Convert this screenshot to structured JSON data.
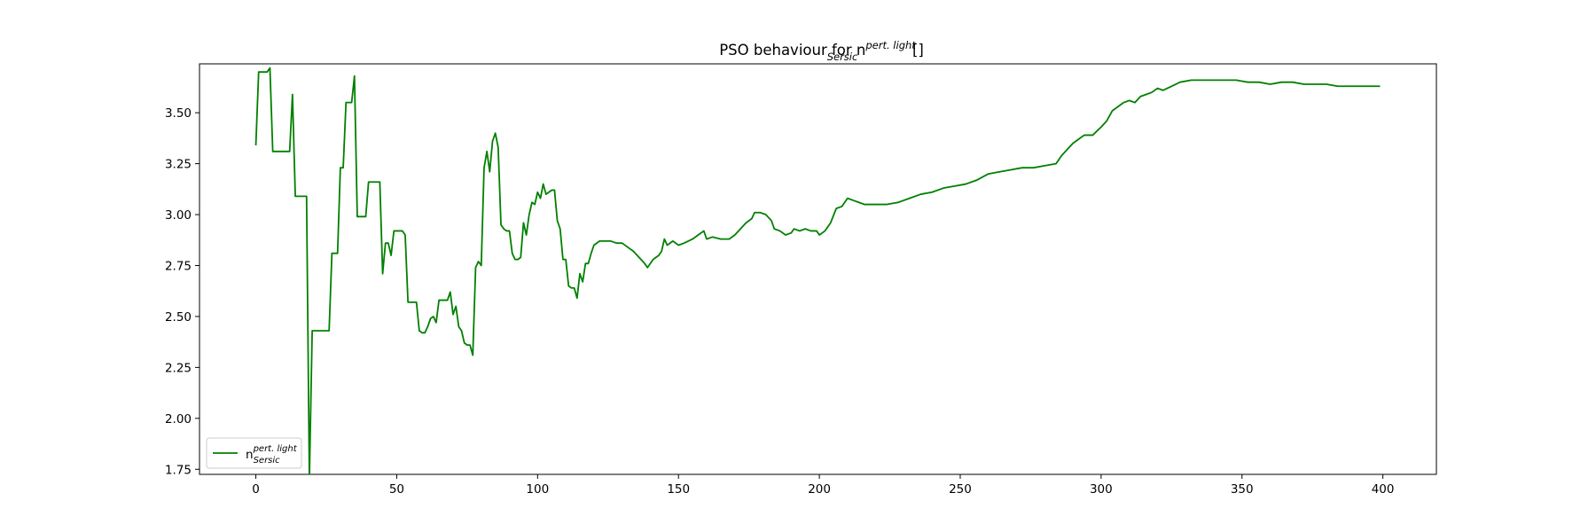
{
  "chart_data": {
    "type": "line",
    "title": {
      "base": "PSO behaviour for n",
      "sup": "pert. light",
      "sub": "Sersic",
      "tail": " []"
    },
    "xlabel": "",
    "ylabel": "",
    "xlim": [
      -20,
      419
    ],
    "ylim": [
      1.725,
      3.74
    ],
    "xticks": [
      0,
      50,
      100,
      150,
      200,
      250,
      300,
      350,
      400
    ],
    "yticks": [
      1.75,
      2.0,
      2.25,
      2.5,
      2.75,
      3.0,
      3.25,
      3.5
    ],
    "ytick_labels": [
      "1.75",
      "2.00",
      "2.25",
      "2.50",
      "2.75",
      "3.00",
      "3.25",
      "3.50"
    ],
    "grid": false,
    "legend_position": "lower-left",
    "series": [
      {
        "name": {
          "base": "n",
          "sup": "pert. light",
          "sub": "Sersic"
        },
        "color": "#008000",
        "points": [
          [
            0,
            3.34
          ],
          [
            1,
            3.7
          ],
          [
            2,
            3.7
          ],
          [
            3,
            3.7
          ],
          [
            4,
            3.7
          ],
          [
            5,
            3.72
          ],
          [
            6,
            3.31
          ],
          [
            7,
            3.31
          ],
          [
            8,
            3.31
          ],
          [
            9,
            3.31
          ],
          [
            10,
            3.31
          ],
          [
            11,
            3.31
          ],
          [
            12,
            3.31
          ],
          [
            13,
            3.59
          ],
          [
            14,
            3.09
          ],
          [
            15,
            3.09
          ],
          [
            16,
            3.09
          ],
          [
            17,
            3.09
          ],
          [
            18,
            3.09
          ],
          [
            19,
            1.7
          ],
          [
            20,
            2.43
          ],
          [
            21,
            2.43
          ],
          [
            22,
            2.43
          ],
          [
            23,
            2.43
          ],
          [
            24,
            2.43
          ],
          [
            25,
            2.43
          ],
          [
            26,
            2.43
          ],
          [
            27,
            2.81
          ],
          [
            28,
            2.81
          ],
          [
            29,
            2.81
          ],
          [
            30,
            3.23
          ],
          [
            31,
            3.23
          ],
          [
            32,
            3.55
          ],
          [
            33,
            3.55
          ],
          [
            34,
            3.55
          ],
          [
            35,
            3.68
          ],
          [
            36,
            2.99
          ],
          [
            37,
            2.99
          ],
          [
            38,
            2.99
          ],
          [
            39,
            2.99
          ],
          [
            40,
            3.16
          ],
          [
            41,
            3.16
          ],
          [
            42,
            3.16
          ],
          [
            43,
            3.16
          ],
          [
            44,
            3.16
          ],
          [
            45,
            2.71
          ],
          [
            46,
            2.86
          ],
          [
            47,
            2.86
          ],
          [
            48,
            2.8
          ],
          [
            49,
            2.92
          ],
          [
            50,
            2.92
          ],
          [
            51,
            2.92
          ],
          [
            52,
            2.92
          ],
          [
            53,
            2.9
          ],
          [
            54,
            2.57
          ],
          [
            55,
            2.57
          ],
          [
            56,
            2.57
          ],
          [
            57,
            2.57
          ],
          [
            58,
            2.43
          ],
          [
            59,
            2.42
          ],
          [
            60,
            2.42
          ],
          [
            61,
            2.45
          ],
          [
            62,
            2.49
          ],
          [
            63,
            2.5
          ],
          [
            64,
            2.47
          ],
          [
            65,
            2.58
          ],
          [
            66,
            2.58
          ],
          [
            67,
            2.58
          ],
          [
            68,
            2.58
          ],
          [
            69,
            2.62
          ],
          [
            70,
            2.51
          ],
          [
            71,
            2.55
          ],
          [
            72,
            2.45
          ],
          [
            73,
            2.43
          ],
          [
            74,
            2.37
          ],
          [
            75,
            2.36
          ],
          [
            76,
            2.36
          ],
          [
            77,
            2.31
          ],
          [
            78,
            2.74
          ],
          [
            79,
            2.77
          ],
          [
            80,
            2.75
          ],
          [
            81,
            3.23
          ],
          [
            82,
            3.31
          ],
          [
            83,
            3.21
          ],
          [
            84,
            3.36
          ],
          [
            85,
            3.4
          ],
          [
            86,
            3.33
          ],
          [
            87,
            2.95
          ],
          [
            88,
            2.93
          ],
          [
            89,
            2.92
          ],
          [
            90,
            2.92
          ],
          [
            91,
            2.81
          ],
          [
            92,
            2.78
          ],
          [
            93,
            2.78
          ],
          [
            94,
            2.79
          ],
          [
            95,
            2.96
          ],
          [
            96,
            2.9
          ],
          [
            97,
            3.0
          ],
          [
            98,
            3.06
          ],
          [
            99,
            3.05
          ],
          [
            100,
            3.11
          ],
          [
            101,
            3.08
          ],
          [
            102,
            3.15
          ],
          [
            103,
            3.1
          ],
          [
            104,
            3.11
          ],
          [
            105,
            3.12
          ],
          [
            106,
            3.12
          ],
          [
            107,
            2.97
          ],
          [
            108,
            2.93
          ],
          [
            109,
            2.78
          ],
          [
            110,
            2.78
          ],
          [
            111,
            2.65
          ],
          [
            112,
            2.64
          ],
          [
            113,
            2.64
          ],
          [
            114,
            2.59
          ],
          [
            115,
            2.71
          ],
          [
            116,
            2.67
          ],
          [
            117,
            2.76
          ],
          [
            118,
            2.76
          ],
          [
            119,
            2.81
          ],
          [
            120,
            2.85
          ],
          [
            122,
            2.87
          ],
          [
            124,
            2.87
          ],
          [
            126,
            2.87
          ],
          [
            128,
            2.86
          ],
          [
            130,
            2.86
          ],
          [
            132,
            2.84
          ],
          [
            134,
            2.82
          ],
          [
            136,
            2.79
          ],
          [
            138,
            2.76
          ],
          [
            139,
            2.74
          ],
          [
            141,
            2.78
          ],
          [
            143,
            2.8
          ],
          [
            144,
            2.82
          ],
          [
            145,
            2.88
          ],
          [
            146,
            2.85
          ],
          [
            148,
            2.87
          ],
          [
            150,
            2.85
          ],
          [
            152,
            2.86
          ],
          [
            155,
            2.88
          ],
          [
            157,
            2.9
          ],
          [
            159,
            2.92
          ],
          [
            160,
            2.88
          ],
          [
            162,
            2.89
          ],
          [
            165,
            2.88
          ],
          [
            168,
            2.88
          ],
          [
            170,
            2.9
          ],
          [
            172,
            2.93
          ],
          [
            174,
            2.96
          ],
          [
            176,
            2.98
          ],
          [
            177,
            3.01
          ],
          [
            179,
            3.01
          ],
          [
            181,
            3.0
          ],
          [
            183,
            2.97
          ],
          [
            184,
            2.93
          ],
          [
            186,
            2.92
          ],
          [
            188,
            2.9
          ],
          [
            190,
            2.91
          ],
          [
            191,
            2.93
          ],
          [
            193,
            2.92
          ],
          [
            195,
            2.93
          ],
          [
            197,
            2.92
          ],
          [
            199,
            2.92
          ],
          [
            200,
            2.9
          ],
          [
            202,
            2.92
          ],
          [
            204,
            2.96
          ],
          [
            206,
            3.03
          ],
          [
            208,
            3.04
          ],
          [
            210,
            3.08
          ],
          [
            212,
            3.07
          ],
          [
            214,
            3.06
          ],
          [
            216,
            3.05
          ],
          [
            220,
            3.05
          ],
          [
            224,
            3.05
          ],
          [
            228,
            3.06
          ],
          [
            232,
            3.08
          ],
          [
            236,
            3.1
          ],
          [
            240,
            3.11
          ],
          [
            244,
            3.13
          ],
          [
            248,
            3.14
          ],
          [
            252,
            3.15
          ],
          [
            256,
            3.17
          ],
          [
            260,
            3.2
          ],
          [
            264,
            3.21
          ],
          [
            268,
            3.22
          ],
          [
            272,
            3.23
          ],
          [
            276,
            3.23
          ],
          [
            280,
            3.24
          ],
          [
            284,
            3.25
          ],
          [
            286,
            3.29
          ],
          [
            288,
            3.32
          ],
          [
            290,
            3.35
          ],
          [
            292,
            3.37
          ],
          [
            294,
            3.39
          ],
          [
            297,
            3.39
          ],
          [
            300,
            3.43
          ],
          [
            302,
            3.46
          ],
          [
            304,
            3.51
          ],
          [
            306,
            3.53
          ],
          [
            308,
            3.55
          ],
          [
            310,
            3.56
          ],
          [
            312,
            3.55
          ],
          [
            314,
            3.58
          ],
          [
            316,
            3.59
          ],
          [
            318,
            3.6
          ],
          [
            320,
            3.62
          ],
          [
            322,
            3.61
          ],
          [
            325,
            3.63
          ],
          [
            328,
            3.65
          ],
          [
            332,
            3.66
          ],
          [
            336,
            3.66
          ],
          [
            340,
            3.66
          ],
          [
            344,
            3.66
          ],
          [
            348,
            3.66
          ],
          [
            352,
            3.65
          ],
          [
            356,
            3.65
          ],
          [
            360,
            3.64
          ],
          [
            364,
            3.65
          ],
          [
            368,
            3.65
          ],
          [
            372,
            3.64
          ],
          [
            376,
            3.64
          ],
          [
            380,
            3.64
          ],
          [
            384,
            3.63
          ],
          [
            388,
            3.63
          ],
          [
            392,
            3.63
          ],
          [
            396,
            3.63
          ],
          [
            399,
            3.63
          ]
        ]
      }
    ]
  }
}
